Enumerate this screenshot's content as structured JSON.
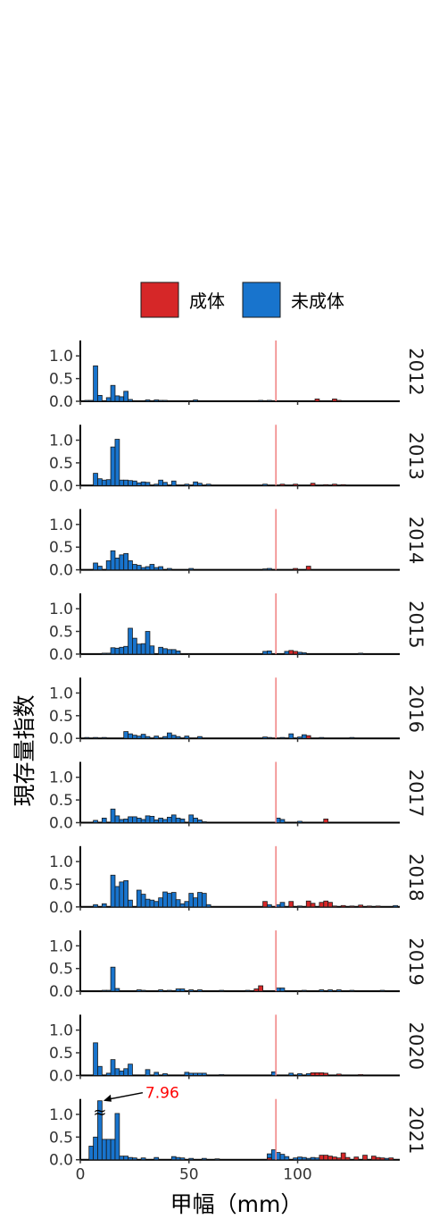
{
  "chart_data": {
    "type": "bar",
    "subtype": "faceted-histogram",
    "title": "",
    "xlabel": "甲幅（mm）",
    "ylabel": "現存量指数",
    "xlim": [
      0,
      147
    ],
    "ylim": [
      0,
      1.3
    ],
    "x_ticks": [
      "0",
      "50",
      "100"
    ],
    "x_tick_values": [
      0,
      50,
      100
    ],
    "y_ticks": [
      "0.0",
      "0.5",
      "1.0"
    ],
    "y_tick_values": [
      0,
      0.5,
      1.0
    ],
    "bin_width": 2,
    "reference_line_x": 90,
    "reference_line_color": "#f08080",
    "legend": {
      "placement": "top-center",
      "entries": [
        {
          "key": "adult",
          "label": "成体",
          "color": "#d62728"
        },
        {
          "key": "juvenile",
          "label": "未成体",
          "color": "#1874cd"
        }
      ]
    },
    "annotation": {
      "year": "2021",
      "x": 9,
      "value": 7.96,
      "text": "7.96",
      "color": "#ff0000",
      "break_symbol": "≈"
    },
    "panels": [
      {
        "year": "2012",
        "juvenile": [
          [
            3,
            0.02
          ],
          [
            5,
            0.02
          ],
          [
            7,
            0.78
          ],
          [
            9,
            0.13
          ],
          [
            13,
            0.08
          ],
          [
            15,
            0.35
          ],
          [
            17,
            0.12
          ],
          [
            19,
            0.1
          ],
          [
            21,
            0.22
          ],
          [
            23,
            0.04
          ],
          [
            31,
            0.03
          ],
          [
            35,
            0.03
          ],
          [
            37,
            0.02
          ],
          [
            39,
            0.02
          ],
          [
            53,
            0.03
          ],
          [
            83,
            0.02
          ],
          [
            87,
            0.02
          ]
        ],
        "adult": [
          [
            109,
            0.05
          ],
          [
            117,
            0.05
          ],
          [
            119,
            0.02
          ]
        ]
      },
      {
        "year": "2013",
        "juvenile": [
          [
            7,
            0.27
          ],
          [
            9,
            0.15
          ],
          [
            11,
            0.12
          ],
          [
            13,
            0.13
          ],
          [
            15,
            0.85
          ],
          [
            17,
            1.02
          ],
          [
            19,
            0.12
          ],
          [
            21,
            0.12
          ],
          [
            23,
            0.11
          ],
          [
            25,
            0.1
          ],
          [
            27,
            0.06
          ],
          [
            29,
            0.08
          ],
          [
            31,
            0.07
          ],
          [
            35,
            0.03
          ],
          [
            37,
            0.12
          ],
          [
            39,
            0.07
          ],
          [
            43,
            0.1
          ],
          [
            49,
            0.03
          ],
          [
            53,
            0.08
          ],
          [
            55,
            0.05
          ],
          [
            59,
            0.03
          ],
          [
            85,
            0.03
          ]
        ],
        "adult": [
          [
            93,
            0.03
          ],
          [
            99,
            0.03
          ],
          [
            107,
            0.05
          ],
          [
            113,
            0.02
          ],
          [
            117,
            0.03
          ],
          [
            121,
            0.02
          ]
        ]
      },
      {
        "year": "2014",
        "juvenile": [
          [
            7,
            0.15
          ],
          [
            9,
            0.08
          ],
          [
            13,
            0.2
          ],
          [
            15,
            0.42
          ],
          [
            17,
            0.26
          ],
          [
            19,
            0.33
          ],
          [
            21,
            0.36
          ],
          [
            23,
            0.2
          ],
          [
            25,
            0.12
          ],
          [
            27,
            0.1
          ],
          [
            29,
            0.05
          ],
          [
            31,
            0.07
          ],
          [
            33,
            0.12
          ],
          [
            35,
            0.05
          ],
          [
            37,
            0.07
          ],
          [
            41,
            0.03
          ],
          [
            51,
            0.03
          ],
          [
            85,
            0.02
          ],
          [
            87,
            0.03
          ]
        ],
        "adult": [
          [
            99,
            0.03
          ],
          [
            105,
            0.08
          ]
        ]
      },
      {
        "year": "2015",
        "juvenile": [
          [
            11,
            0.02
          ],
          [
            13,
            0.02
          ],
          [
            15,
            0.14
          ],
          [
            17,
            0.13
          ],
          [
            19,
            0.15
          ],
          [
            21,
            0.17
          ],
          [
            23,
            0.57
          ],
          [
            25,
            0.35
          ],
          [
            27,
            0.22
          ],
          [
            29,
            0.23
          ],
          [
            31,
            0.5
          ],
          [
            33,
            0.18
          ],
          [
            37,
            0.15
          ],
          [
            39,
            0.12
          ],
          [
            41,
            0.1
          ],
          [
            43,
            0.1
          ],
          [
            45,
            0.07
          ],
          [
            85,
            0.06
          ],
          [
            87,
            0.07
          ],
          [
            95,
            0.06
          ],
          [
            101,
            0.04
          ],
          [
            103,
            0.03
          ],
          [
            129,
            0.02
          ]
        ],
        "adult": [
          [
            97,
            0.08
          ],
          [
            99,
            0.06
          ]
        ]
      },
      {
        "year": "2016",
        "juvenile": [
          [
            3,
            0.02
          ],
          [
            7,
            0.02
          ],
          [
            11,
            0.02
          ],
          [
            21,
            0.15
          ],
          [
            23,
            0.1
          ],
          [
            25,
            0.07
          ],
          [
            27,
            0.05
          ],
          [
            29,
            0.09
          ],
          [
            31,
            0.04
          ],
          [
            35,
            0.05
          ],
          [
            39,
            0.04
          ],
          [
            41,
            0.12
          ],
          [
            43,
            0.07
          ],
          [
            45,
            0.04
          ],
          [
            49,
            0.05
          ],
          [
            55,
            0.04
          ],
          [
            85,
            0.03
          ],
          [
            87,
            0.02
          ],
          [
            93,
            0.02
          ],
          [
            97,
            0.1
          ],
          [
            101,
            0.03
          ],
          [
            103,
            0.08
          ],
          [
            111,
            0.02
          ],
          [
            125,
            0.02
          ]
        ],
        "adult": [
          [
            105,
            0.06
          ]
        ]
      },
      {
        "year": "2017",
        "juvenile": [
          [
            7,
            0.05
          ],
          [
            11,
            0.1
          ],
          [
            15,
            0.3
          ],
          [
            17,
            0.15
          ],
          [
            19,
            0.07
          ],
          [
            21,
            0.08
          ],
          [
            23,
            0.13
          ],
          [
            25,
            0.13
          ],
          [
            27,
            0.1
          ],
          [
            29,
            0.07
          ],
          [
            31,
            0.15
          ],
          [
            33,
            0.14
          ],
          [
            35,
            0.06
          ],
          [
            37,
            0.1
          ],
          [
            39,
            0.07
          ],
          [
            41,
            0.12
          ],
          [
            43,
            0.17
          ],
          [
            45,
            0.1
          ],
          [
            47,
            0.08
          ],
          [
            51,
            0.17
          ],
          [
            53,
            0.1
          ],
          [
            55,
            0.06
          ],
          [
            57,
            0.02
          ],
          [
            91,
            0.1
          ],
          [
            93,
            0.07
          ],
          [
            101,
            0.03
          ]
        ],
        "adult": [
          [
            113,
            0.08
          ]
        ]
      },
      {
        "year": "2018",
        "juvenile": [
          [
            7,
            0.05
          ],
          [
            11,
            0.07
          ],
          [
            15,
            0.7
          ],
          [
            17,
            0.45
          ],
          [
            19,
            0.55
          ],
          [
            21,
            0.58
          ],
          [
            23,
            0.15
          ],
          [
            27,
            0.37
          ],
          [
            29,
            0.28
          ],
          [
            31,
            0.17
          ],
          [
            33,
            0.15
          ],
          [
            35,
            0.12
          ],
          [
            37,
            0.2
          ],
          [
            39,
            0.33
          ],
          [
            41,
            0.3
          ],
          [
            43,
            0.32
          ],
          [
            45,
            0.16
          ],
          [
            47,
            0.07
          ],
          [
            49,
            0.12
          ],
          [
            51,
            0.3
          ],
          [
            53,
            0.2
          ],
          [
            55,
            0.32
          ],
          [
            57,
            0.3
          ],
          [
            59,
            0.05
          ],
          [
            87,
            0.05
          ],
          [
            91,
            0.05
          ],
          [
            93,
            0.1
          ],
          [
            97,
            0.03
          ],
          [
            101,
            0.02
          ],
          [
            145,
            0.03
          ]
        ],
        "adult": [
          [
            85,
            0.12
          ],
          [
            97,
            0.12
          ],
          [
            105,
            0.13
          ],
          [
            107,
            0.08
          ],
          [
            111,
            0.1
          ],
          [
            113,
            0.13
          ],
          [
            115,
            0.1
          ],
          [
            117,
            0.02
          ],
          [
            121,
            0.03
          ],
          [
            125,
            0.02
          ],
          [
            129,
            0.04
          ],
          [
            133,
            0.02
          ],
          [
            137,
            0.02
          ]
        ]
      },
      {
        "year": "2019",
        "juvenile": [
          [
            11,
            0.02
          ],
          [
            13,
            0.02
          ],
          [
            15,
            0.53
          ],
          [
            17,
            0.06
          ],
          [
            27,
            0.03
          ],
          [
            29,
            0.02
          ],
          [
            37,
            0.03
          ],
          [
            41,
            0.02
          ],
          [
            45,
            0.05
          ],
          [
            47,
            0.05
          ],
          [
            51,
            0.03
          ],
          [
            55,
            0.03
          ],
          [
            65,
            0.02
          ],
          [
            77,
            0.02
          ],
          [
            91,
            0.07
          ],
          [
            93,
            0.07
          ],
          [
            103,
            0.02
          ],
          [
            111,
            0.03
          ],
          [
            115,
            0.03
          ],
          [
            119,
            0.03
          ],
          [
            125,
            0.02
          ],
          [
            139,
            0.02
          ]
        ],
        "adult": [
          [
            81,
            0.05
          ],
          [
            83,
            0.12
          ]
        ]
      },
      {
        "year": "2020",
        "juvenile": [
          [
            7,
            0.72
          ],
          [
            9,
            0.2
          ],
          [
            13,
            0.05
          ],
          [
            15,
            0.35
          ],
          [
            17,
            0.15
          ],
          [
            19,
            0.1
          ],
          [
            21,
            0.15
          ],
          [
            23,
            0.25
          ],
          [
            31,
            0.13
          ],
          [
            35,
            0.07
          ],
          [
            39,
            0.04
          ],
          [
            49,
            0.07
          ],
          [
            51,
            0.05
          ],
          [
            53,
            0.05
          ],
          [
            55,
            0.05
          ],
          [
            57,
            0.05
          ],
          [
            65,
            0.02
          ],
          [
            89,
            0.08
          ],
          [
            97,
            0.05
          ],
          [
            101,
            0.04
          ],
          [
            105,
            0.04
          ]
        ],
        "adult": [
          [
            107,
            0.06
          ],
          [
            109,
            0.06
          ],
          [
            111,
            0.06
          ],
          [
            113,
            0.05
          ],
          [
            119,
            0.03
          ],
          [
            129,
            0.02
          ]
        ]
      },
      {
        "year": "2021",
        "juvenile": [
          [
            5,
            0.3
          ],
          [
            7,
            0.5
          ],
          [
            9,
            1.3
          ],
          [
            11,
            0.45
          ],
          [
            13,
            0.45
          ],
          [
            15,
            0.45
          ],
          [
            17,
            1.02
          ],
          [
            19,
            0.08
          ],
          [
            21,
            0.08
          ],
          [
            23,
            0.05
          ],
          [
            25,
            0.04
          ],
          [
            29,
            0.04
          ],
          [
            35,
            0.05
          ],
          [
            43,
            0.07
          ],
          [
            45,
            0.05
          ],
          [
            47,
            0.04
          ],
          [
            51,
            0.03
          ],
          [
            57,
            0.03
          ],
          [
            63,
            0.02
          ],
          [
            87,
            0.13
          ],
          [
            89,
            0.22
          ],
          [
            91,
            0.16
          ],
          [
            93,
            0.12
          ],
          [
            95,
            0.07
          ],
          [
            99,
            0.04
          ],
          [
            101,
            0.06
          ],
          [
            103,
            0.05
          ],
          [
            105,
            0.03
          ],
          [
            107,
            0.05
          ],
          [
            109,
            0.04
          ],
          [
            141,
            0.03
          ],
          [
            143,
            0.02
          ]
        ],
        "adult": [
          [
            87,
            0.04
          ],
          [
            111,
            0.1
          ],
          [
            113,
            0.1
          ],
          [
            115,
            0.08
          ],
          [
            117,
            0.06
          ],
          [
            119,
            0.04
          ],
          [
            121,
            0.15
          ],
          [
            123,
            0.05
          ],
          [
            127,
            0.06
          ],
          [
            131,
            0.1
          ],
          [
            135,
            0.08
          ],
          [
            137,
            0.05
          ],
          [
            139,
            0.04
          ],
          [
            143,
            0.04
          ]
        ]
      }
    ]
  }
}
